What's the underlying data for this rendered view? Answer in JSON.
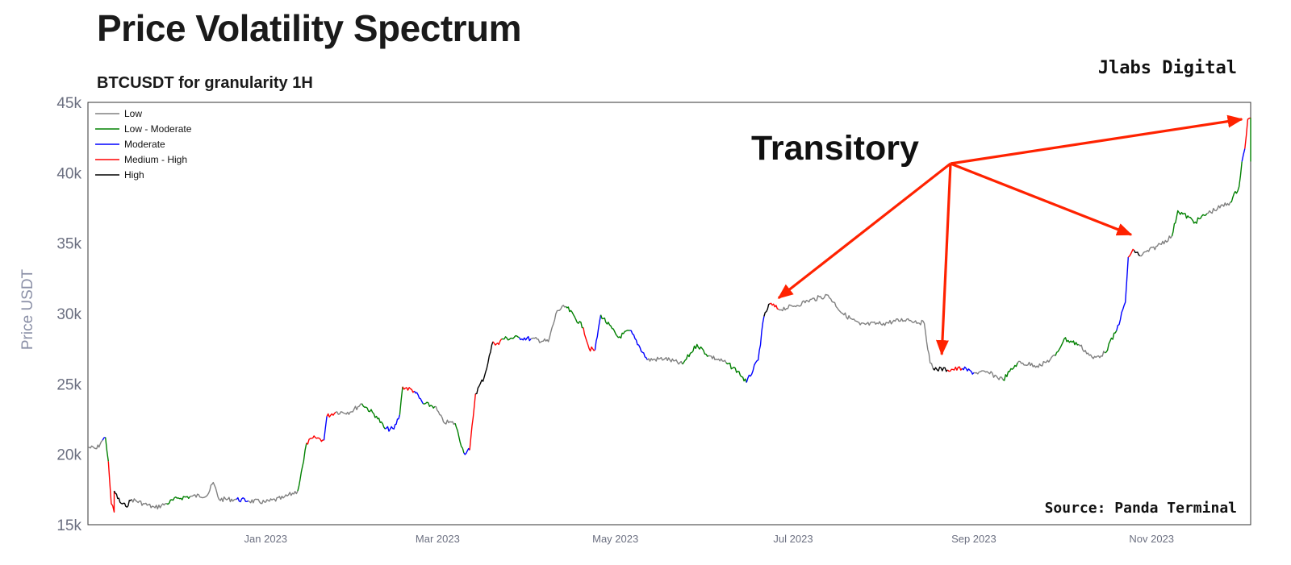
{
  "header": {
    "title": "Price Volatility Spectrum",
    "subtitle": "BTCUSDT for granularity 1H",
    "brand": "Jlabs Digital",
    "source": "Source: Panda Terminal"
  },
  "chart_data": {
    "type": "line",
    "ylabel": "Price USDT",
    "xlabel": "",
    "ylim": [
      15000,
      45000
    ],
    "xlim": [
      "2022-11-01",
      "2023-12-05"
    ],
    "y_ticks": [
      15000,
      20000,
      25000,
      30000,
      35000,
      40000,
      45000
    ],
    "y_tick_labels": [
      "15k",
      "20k",
      "25k",
      "30k",
      "35k",
      "40k",
      "45k"
    ],
    "x_ticks": [
      "2023-01-01",
      "2023-03-01",
      "2023-05-01",
      "2023-07-01",
      "2023-09-01",
      "2023-11-01"
    ],
    "x_tick_labels": [
      "Jan 2023",
      "Mar 2023",
      "May 2023",
      "Jul 2023",
      "Sep 2023",
      "Nov 2023"
    ],
    "grid": false,
    "legend_position": "top-left",
    "legend": [
      {
        "name": "Low",
        "color": "#808080"
      },
      {
        "name": "Low - Moderate",
        "color": "#008000"
      },
      {
        "name": "Moderate",
        "color": "#0000ff"
      },
      {
        "name": "Medium - High",
        "color": "#ff0000"
      },
      {
        "name": "High",
        "color": "#000000"
      }
    ],
    "series": [
      {
        "level": "Low",
        "points": [
          [
            "2022-11-01",
            20500
          ],
          [
            "2022-11-04",
            20400
          ],
          [
            "2022-11-06",
            21000
          ]
        ]
      },
      {
        "level": "Moderate",
        "points": [
          [
            "2022-11-06",
            21000
          ],
          [
            "2022-11-07",
            21200
          ]
        ]
      },
      {
        "level": "Low - Moderate",
        "points": [
          [
            "2022-11-07",
            21200
          ],
          [
            "2022-11-08",
            19500
          ]
        ]
      },
      {
        "level": "Medium - High",
        "points": [
          [
            "2022-11-08",
            19500
          ],
          [
            "2022-11-09",
            16500
          ],
          [
            "2022-11-10",
            15900
          ],
          [
            "2022-11-10",
            17400
          ]
        ]
      },
      {
        "level": "High",
        "points": [
          [
            "2022-11-10",
            17400
          ],
          [
            "2022-11-12",
            16600
          ],
          [
            "2022-11-14",
            16300
          ],
          [
            "2022-11-16",
            16800
          ]
        ]
      },
      {
        "level": "Low",
        "points": [
          [
            "2022-11-16",
            16800
          ],
          [
            "2022-11-20",
            16500
          ],
          [
            "2022-11-24",
            16200
          ],
          [
            "2022-11-28",
            16500
          ]
        ]
      },
      {
        "level": "Low - Moderate",
        "points": [
          [
            "2022-11-28",
            16500
          ],
          [
            "2022-12-02",
            16900
          ],
          [
            "2022-12-06",
            17000
          ]
        ]
      },
      {
        "level": "Low",
        "points": [
          [
            "2022-12-06",
            17000
          ],
          [
            "2022-12-12",
            17100
          ],
          [
            "2022-12-14",
            18000
          ],
          [
            "2022-12-16",
            16800
          ],
          [
            "2022-12-22",
            16800
          ]
        ]
      },
      {
        "level": "Moderate",
        "points": [
          [
            "2022-12-22",
            16800
          ],
          [
            "2022-12-26",
            16700
          ]
        ]
      },
      {
        "level": "Low",
        "points": [
          [
            "2022-12-26",
            16700
          ],
          [
            "2023-01-01",
            16600
          ],
          [
            "2023-01-07",
            16900
          ],
          [
            "2023-01-12",
            17400
          ]
        ]
      },
      {
        "level": "Low - Moderate",
        "points": [
          [
            "2023-01-12",
            17400
          ],
          [
            "2023-01-14",
            19500
          ],
          [
            "2023-01-15",
            20800
          ]
        ]
      },
      {
        "level": "Medium - High",
        "points": [
          [
            "2023-01-15",
            20800
          ],
          [
            "2023-01-18",
            21200
          ],
          [
            "2023-01-21",
            21000
          ]
        ]
      },
      {
        "level": "Moderate",
        "points": [
          [
            "2023-01-21",
            21000
          ],
          [
            "2023-01-22",
            22700
          ]
        ]
      },
      {
        "level": "Medium - High",
        "points": [
          [
            "2023-01-22",
            22700
          ],
          [
            "2023-01-25",
            23000
          ]
        ]
      },
      {
        "level": "Low",
        "points": [
          [
            "2023-01-25",
            23000
          ],
          [
            "2023-01-30",
            23000
          ],
          [
            "2023-02-03",
            23600
          ]
        ]
      },
      {
        "level": "Low - Moderate",
        "points": [
          [
            "2023-02-03",
            23600
          ],
          [
            "2023-02-08",
            22700
          ],
          [
            "2023-02-11",
            21800
          ]
        ]
      },
      {
        "level": "Moderate",
        "points": [
          [
            "2023-02-11",
            21800
          ],
          [
            "2023-02-14",
            21800
          ],
          [
            "2023-02-16",
            22800
          ]
        ]
      },
      {
        "level": "Low - Moderate",
        "points": [
          [
            "2023-02-16",
            22800
          ],
          [
            "2023-02-17",
            24800
          ]
        ]
      },
      {
        "level": "Medium - High",
        "points": [
          [
            "2023-02-17",
            24800
          ],
          [
            "2023-02-21",
            24500
          ]
        ]
      },
      {
        "level": "Moderate",
        "points": [
          [
            "2023-02-21",
            24500
          ],
          [
            "2023-02-24",
            23600
          ]
        ]
      },
      {
        "level": "Low - Moderate",
        "points": [
          [
            "2023-02-24",
            23600
          ],
          [
            "2023-02-28",
            23400
          ]
        ]
      },
      {
        "level": "Low",
        "points": [
          [
            "2023-02-28",
            23400
          ],
          [
            "2023-03-03",
            22300
          ],
          [
            "2023-03-07",
            22200
          ]
        ]
      },
      {
        "level": "Low - Moderate",
        "points": [
          [
            "2023-03-07",
            22200
          ],
          [
            "2023-03-10",
            20100
          ]
        ]
      },
      {
        "level": "Moderate",
        "points": [
          [
            "2023-03-10",
            20100
          ],
          [
            "2023-03-12",
            20300
          ]
        ]
      },
      {
        "level": "Medium - High",
        "points": [
          [
            "2023-03-12",
            20300
          ],
          [
            "2023-03-14",
            24300
          ]
        ]
      },
      {
        "level": "High",
        "points": [
          [
            "2023-03-14",
            24300
          ],
          [
            "2023-03-17",
            25500
          ],
          [
            "2023-03-20",
            28000
          ]
        ]
      },
      {
        "level": "Medium - High",
        "points": [
          [
            "2023-03-20",
            28000
          ],
          [
            "2023-03-22",
            27800
          ],
          [
            "2023-03-23",
            28200
          ]
        ]
      },
      {
        "level": "Low - Moderate",
        "points": [
          [
            "2023-03-23",
            28200
          ],
          [
            "2023-03-29",
            28300
          ]
        ]
      },
      {
        "level": "Moderate",
        "points": [
          [
            "2023-03-29",
            28300
          ],
          [
            "2023-04-02",
            28200
          ]
        ]
      },
      {
        "level": "Low",
        "points": [
          [
            "2023-04-02",
            28200
          ],
          [
            "2023-04-08",
            28000
          ],
          [
            "2023-04-11",
            30200
          ],
          [
            "2023-04-14",
            30500
          ]
        ]
      },
      {
        "level": "Low - Moderate",
        "points": [
          [
            "2023-04-14",
            30500
          ],
          [
            "2023-04-20",
            29000
          ]
        ]
      },
      {
        "level": "Medium - High",
        "points": [
          [
            "2023-04-20",
            29000
          ],
          [
            "2023-04-22",
            27500
          ],
          [
            "2023-04-24",
            27400
          ]
        ]
      },
      {
        "level": "Moderate",
        "points": [
          [
            "2023-04-24",
            27400
          ],
          [
            "2023-04-26",
            29900
          ]
        ]
      },
      {
        "level": "Low - Moderate",
        "points": [
          [
            "2023-04-26",
            29900
          ],
          [
            "2023-05-02",
            28300
          ],
          [
            "2023-05-06",
            28800
          ]
        ]
      },
      {
        "level": "Moderate",
        "points": [
          [
            "2023-05-06",
            28800
          ],
          [
            "2023-05-12",
            26700
          ]
        ]
      },
      {
        "level": "Low",
        "points": [
          [
            "2023-05-12",
            26700
          ],
          [
            "2023-05-18",
            26800
          ],
          [
            "2023-05-24",
            26400
          ]
        ]
      },
      {
        "level": "Low - Moderate",
        "points": [
          [
            "2023-05-24",
            26400
          ],
          [
            "2023-05-29",
            27800
          ],
          [
            "2023-06-02",
            27000
          ]
        ]
      },
      {
        "level": "Low",
        "points": [
          [
            "2023-06-02",
            27000
          ],
          [
            "2023-06-08",
            26500
          ]
        ]
      },
      {
        "level": "Low - Moderate",
        "points": [
          [
            "2023-06-08",
            26500
          ],
          [
            "2023-06-12",
            25900
          ],
          [
            "2023-06-15",
            25100
          ]
        ]
      },
      {
        "level": "Moderate",
        "points": [
          [
            "2023-06-15",
            25100
          ],
          [
            "2023-06-19",
            26700
          ],
          [
            "2023-06-21",
            29800
          ]
        ]
      },
      {
        "level": "High",
        "points": [
          [
            "2023-06-21",
            29800
          ],
          [
            "2023-06-23",
            30700
          ]
        ]
      },
      {
        "level": "Medium - High",
        "points": [
          [
            "2023-06-23",
            30700
          ],
          [
            "2023-06-26",
            30300
          ]
        ]
      },
      {
        "level": "Low",
        "points": [
          [
            "2023-06-26",
            30300
          ],
          [
            "2023-07-01",
            30500
          ],
          [
            "2023-07-06",
            30900
          ],
          [
            "2023-07-13",
            31300
          ],
          [
            "2023-07-18",
            30000
          ],
          [
            "2023-07-24",
            29200
          ],
          [
            "2023-08-01",
            29300
          ],
          [
            "2023-08-09",
            29600
          ],
          [
            "2023-08-15",
            29300
          ],
          [
            "2023-08-17",
            26500
          ],
          [
            "2023-08-18",
            26100
          ]
        ]
      },
      {
        "level": "High",
        "points": [
          [
            "2023-08-18",
            26100
          ],
          [
            "2023-08-23",
            26000
          ]
        ]
      },
      {
        "level": "Medium - High",
        "points": [
          [
            "2023-08-23",
            26000
          ],
          [
            "2023-08-28",
            26100
          ]
        ]
      },
      {
        "level": "Moderate",
        "points": [
          [
            "2023-08-28",
            26100
          ],
          [
            "2023-09-01",
            25800
          ]
        ]
      },
      {
        "level": "Low",
        "points": [
          [
            "2023-09-01",
            25800
          ],
          [
            "2023-09-06",
            25800
          ],
          [
            "2023-09-11",
            25300
          ]
        ]
      },
      {
        "level": "Low - Moderate",
        "points": [
          [
            "2023-09-11",
            25300
          ],
          [
            "2023-09-16",
            26500
          ]
        ]
      },
      {
        "level": "Low",
        "points": [
          [
            "2023-09-16",
            26500
          ],
          [
            "2023-09-24",
            26300
          ],
          [
            "2023-09-29",
            27000
          ]
        ]
      },
      {
        "level": "Low - Moderate",
        "points": [
          [
            "2023-09-29",
            27000
          ],
          [
            "2023-10-02",
            28200
          ],
          [
            "2023-10-07",
            27800
          ]
        ]
      },
      {
        "level": "Low",
        "points": [
          [
            "2023-10-07",
            27800
          ],
          [
            "2023-10-12",
            26800
          ],
          [
            "2023-10-16",
            27200
          ]
        ]
      },
      {
        "level": "Low - Moderate",
        "points": [
          [
            "2023-10-16",
            27200
          ],
          [
            "2023-10-20",
            28800
          ]
        ]
      },
      {
        "level": "Moderate",
        "points": [
          [
            "2023-10-20",
            28800
          ],
          [
            "2023-10-23",
            30800
          ],
          [
            "2023-10-24",
            34000
          ]
        ]
      },
      {
        "level": "Medium - High",
        "points": [
          [
            "2023-10-24",
            34000
          ],
          [
            "2023-10-26",
            34500
          ]
        ]
      },
      {
        "level": "High",
        "points": [
          [
            "2023-10-26",
            34500
          ],
          [
            "2023-10-28",
            34100
          ]
        ]
      },
      {
        "level": "Low",
        "points": [
          [
            "2023-10-28",
            34100
          ],
          [
            "2023-11-03",
            34800
          ],
          [
            "2023-11-08",
            35500
          ]
        ]
      },
      {
        "level": "Low - Moderate",
        "points": [
          [
            "2023-11-08",
            35500
          ],
          [
            "2023-11-10",
            37300
          ],
          [
            "2023-11-16",
            36500
          ],
          [
            "2023-11-20",
            37100
          ]
        ]
      },
      {
        "level": "Low",
        "points": [
          [
            "2023-11-20",
            37100
          ],
          [
            "2023-11-28",
            37900
          ]
        ]
      },
      {
        "level": "Low - Moderate",
        "points": [
          [
            "2023-11-28",
            37900
          ],
          [
            "2023-12-01",
            39000
          ],
          [
            "2023-12-02",
            40800
          ]
        ]
      },
      {
        "level": "Moderate",
        "points": [
          [
            "2023-12-02",
            40800
          ],
          [
            "2023-12-03",
            41700
          ]
        ]
      },
      {
        "level": "Medium - High",
        "points": [
          [
            "2023-12-03",
            41700
          ],
          [
            "2023-12-04",
            43800
          ],
          [
            "2023-12-05",
            43900
          ]
        ]
      },
      {
        "level": "Low - Moderate",
        "points": [
          [
            "2023-12-05",
            43900
          ],
          [
            "2023-12-05",
            40800
          ]
        ]
      }
    ],
    "annotations": [
      {
        "text": "Transitory",
        "color": "#ff0000",
        "arrow_targets": [
          [
            "2023-06-26",
            31100
          ],
          [
            "2023-08-21",
            27100
          ],
          [
            "2023-10-25",
            35600
          ],
          [
            "2023-12-02",
            43800
          ]
        ]
      }
    ]
  }
}
